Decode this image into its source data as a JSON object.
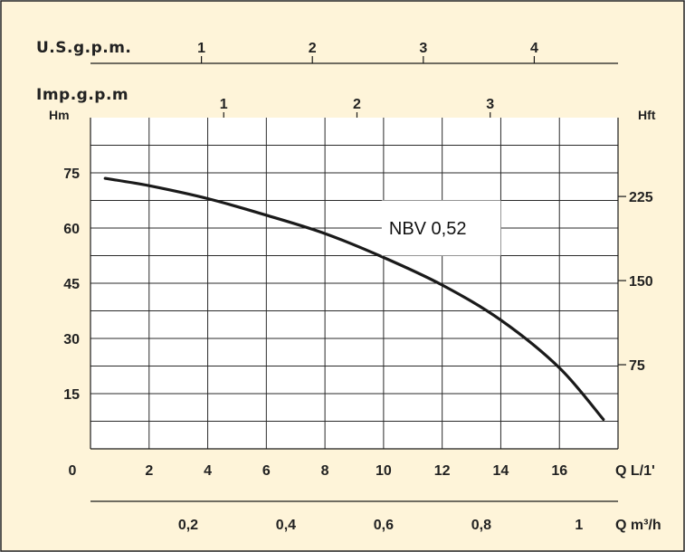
{
  "chart_data": {
    "type": "line",
    "title": "",
    "series": [
      {
        "name": "NBV 0,52",
        "x": [
          0.5,
          2,
          4,
          6,
          8,
          10,
          12,
          14,
          16,
          17.5
        ],
        "y": [
          73.5,
          71.5,
          68,
          63.5,
          58.5,
          52,
          44.5,
          35,
          22,
          8
        ]
      }
    ],
    "xlabel": "Q L/1'",
    "ylabel": "Hm",
    "xlim": [
      0,
      18
    ],
    "ylim": [
      0,
      90
    ],
    "x_ticks": [
      "0",
      "2",
      "4",
      "6",
      "8",
      "10",
      "12",
      "14",
      "16"
    ],
    "y_ticks": [
      "15",
      "30",
      "45",
      "60",
      "75"
    ],
    "secondary_axes": {
      "right": {
        "label": "Hft",
        "ticks": [
          {
            "v": 75,
            "t": "75"
          },
          {
            "v": 150,
            "t": "150"
          },
          {
            "v": 225,
            "t": "225"
          }
        ]
      },
      "bottom": {
        "label": "Q m³/h",
        "ticks": [
          {
            "v": 0.2,
            "t": "0,2"
          },
          {
            "v": 0.4,
            "t": "0,4"
          },
          {
            "v": 0.6,
            "t": "0,6"
          },
          {
            "v": 0.8,
            "t": "0,8"
          },
          {
            "v": 1,
            "t": "1"
          }
        ]
      },
      "top_us": {
        "label": "U.S.g.p.m.",
        "ticks": [
          {
            "v": 1,
            "t": "1"
          },
          {
            "v": 2,
            "t": "2"
          },
          {
            "v": 3,
            "t": "3"
          },
          {
            "v": 4,
            "t": "4"
          }
        ]
      },
      "top_imp": {
        "label": "Imp.g.p.m",
        "ticks": [
          {
            "v": 1,
            "t": "1"
          },
          {
            "v": 2,
            "t": "2"
          },
          {
            "v": 3,
            "t": "3"
          }
        ]
      }
    },
    "grid": true,
    "colors": {
      "background": "#fef4d9",
      "plot": "#ffffff",
      "line": "#1a1a1a"
    }
  }
}
